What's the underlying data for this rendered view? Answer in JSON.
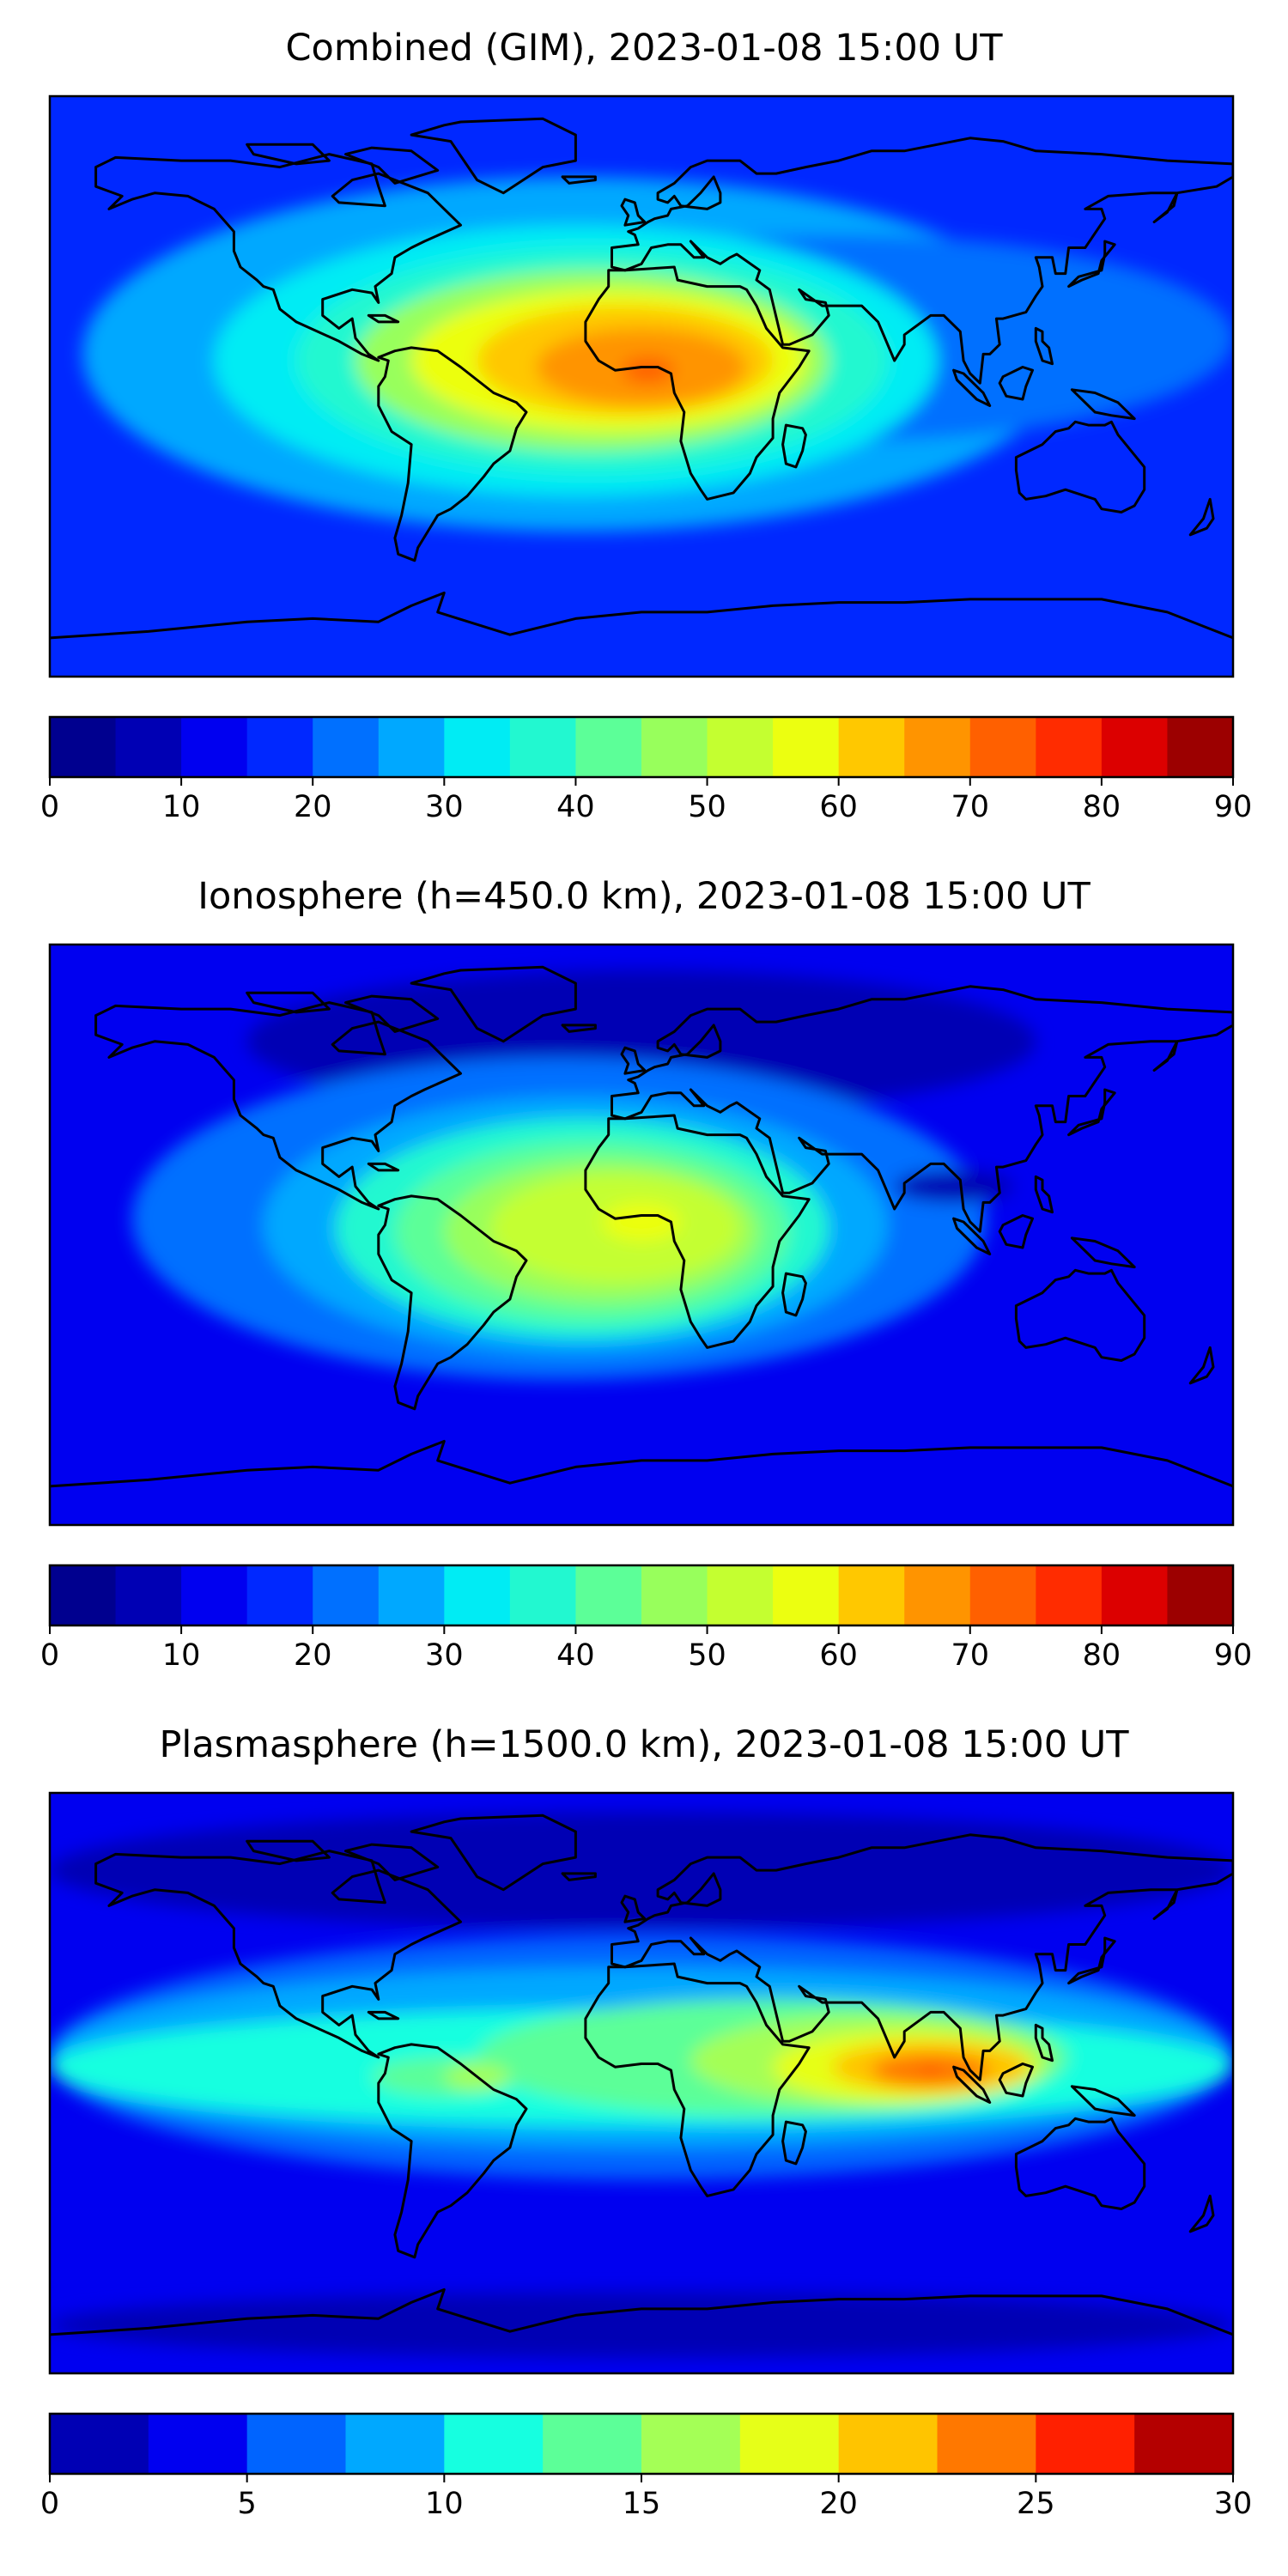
{
  "colors": {
    "jet": [
      "#00008f",
      "#0000b4",
      "#0000f0",
      "#0028ff",
      "#0070ff",
      "#00a8ff",
      "#00ecf4",
      "#22f8d0",
      "#5cff98",
      "#98ff5c",
      "#c4ff30",
      "#ecff10",
      "#ffc800",
      "#ff9400",
      "#ff6000",
      "#ff2c00",
      "#dc0000",
      "#9c0000"
    ],
    "jet12": [
      "#0000b4",
      "#0000f0",
      "#0064ff",
      "#00a8ff",
      "#16ffe0",
      "#5cff98",
      "#a4ff56",
      "#e6ff18",
      "#ffc400",
      "#ff7800",
      "#ff2000",
      "#b40000"
    ]
  },
  "panels": [
    {
      "title": "Combined (GIM), 2023-01-08 15:00 UT",
      "levels": [
        0,
        5,
        10,
        15,
        20,
        25,
        30,
        35,
        40,
        45,
        50,
        55,
        60,
        65,
        70,
        75,
        80,
        85,
        90
      ],
      "tick_labels": [
        "0",
        "10",
        "20",
        "30",
        "40",
        "50",
        "60",
        "70",
        "80",
        "90"
      ],
      "tick_values": [
        0,
        10,
        20,
        30,
        40,
        50,
        60,
        70,
        80,
        90
      ],
      "palette": "jet",
      "background_level": 3,
      "blobs": [
        {
          "lon": -20,
          "lat": 10,
          "rx": 150,
          "ry": 55,
          "level": 5
        },
        {
          "lon": 60,
          "lat": 15,
          "rx": 120,
          "ry": 32,
          "level": 4
        },
        {
          "lon": -20,
          "lat": 8,
          "rx": 110,
          "ry": 42,
          "level": 6
        },
        {
          "lon": -15,
          "lat": 8,
          "rx": 90,
          "ry": 35,
          "level": 7
        },
        {
          "lon": -15,
          "lat": 8,
          "rx": 72,
          "ry": 28,
          "level": 9
        },
        {
          "lon": -10,
          "lat": 8,
          "rx": 60,
          "ry": 22,
          "level": 11
        },
        {
          "lon": -5,
          "lat": 8,
          "rx": 45,
          "ry": 17,
          "level": 12
        },
        {
          "lon": 0,
          "lat": 6,
          "rx": 32,
          "ry": 12,
          "level": 13
        },
        {
          "lon": 2,
          "lat": 5,
          "rx": 8,
          "ry": 4,
          "level": 14
        }
      ]
    },
    {
      "title": "Ionosphere  (h=450.0 km), 2023-01-08 15:00 UT",
      "levels": [
        0,
        5,
        10,
        15,
        20,
        25,
        30,
        35,
        40,
        45,
        50,
        55,
        60,
        65,
        70,
        75,
        80,
        85,
        90
      ],
      "tick_labels": [
        "0",
        "10",
        "20",
        "30",
        "40",
        "50",
        "60",
        "70",
        "80",
        "90"
      ],
      "tick_values": [
        0,
        10,
        20,
        30,
        40,
        50,
        60,
        70,
        80,
        90
      ],
      "palette": "jet",
      "background_level": 2,
      "blobs": [
        {
          "lon": 0,
          "lat": 60,
          "rx": 120,
          "ry": 22,
          "level": 1
        },
        {
          "lon": -25,
          "lat": 5,
          "rx": 130,
          "ry": 50,
          "level": 4
        },
        {
          "lon": -20,
          "lat": 3,
          "rx": 95,
          "ry": 40,
          "level": 5
        },
        {
          "lon": -18,
          "lat": 2,
          "rx": 75,
          "ry": 34,
          "level": 7
        },
        {
          "lon": -15,
          "lat": 1,
          "rx": 60,
          "ry": 28,
          "level": 8
        },
        {
          "lon": -12,
          "lat": 1,
          "rx": 48,
          "ry": 22,
          "level": 9
        },
        {
          "lon": -8,
          "lat": 2,
          "rx": 38,
          "ry": 17,
          "level": 10
        },
        {
          "lon": 0,
          "lat": 4,
          "rx": 12,
          "ry": 6,
          "level": 11
        },
        {
          "lon": 95,
          "lat": 15,
          "rx": 18,
          "ry": 5,
          "level": 1
        }
      ]
    },
    {
      "title": "Plasmasphere (h=1500.0 km), 2023-01-08 15:00 UT",
      "levels": [
        0,
        2.5,
        5,
        7.5,
        10,
        12.5,
        15,
        17.5,
        20,
        22.5,
        25,
        27.5,
        30
      ],
      "tick_labels": [
        "0",
        "5",
        "10",
        "15",
        "20",
        "25",
        "30"
      ],
      "tick_values": [
        0,
        5,
        10,
        15,
        20,
        25,
        30
      ],
      "palette": "jet12",
      "background_level": 1,
      "blobs": [
        {
          "lon": 0,
          "lat": 66,
          "rx": 180,
          "ry": 18,
          "level": 0
        },
        {
          "lon": 0,
          "lat": -75,
          "rx": 180,
          "ry": 10,
          "level": 0
        },
        {
          "lon": 0,
          "lat": 8,
          "rx": 180,
          "ry": 38,
          "level": 2
        },
        {
          "lon": 0,
          "lat": 8,
          "rx": 180,
          "ry": 28,
          "level": 3
        },
        {
          "lon": 0,
          "lat": 5,
          "rx": 180,
          "ry": 18,
          "level": 4
        },
        {
          "lon": 40,
          "lat": 8,
          "rx": 90,
          "ry": 18,
          "level": 5
        },
        {
          "lon": -60,
          "lat": 2,
          "rx": 22,
          "ry": 6,
          "level": 5
        },
        {
          "lon": -50,
          "lat": 2,
          "rx": 10,
          "ry": 4,
          "level": 6
        },
        {
          "lon": 70,
          "lat": 7,
          "rx": 55,
          "ry": 14,
          "level": 6
        },
        {
          "lon": 80,
          "lat": 5,
          "rx": 40,
          "ry": 11,
          "level": 7
        },
        {
          "lon": 88,
          "lat": 5,
          "rx": 30,
          "ry": 8,
          "level": 8
        },
        {
          "lon": 88,
          "lat": 4,
          "rx": 18,
          "ry": 5,
          "level": 9
        },
        {
          "lon": 88,
          "lat": 4,
          "rx": 2,
          "ry": 1,
          "level": 10
        }
      ]
    }
  ]
}
